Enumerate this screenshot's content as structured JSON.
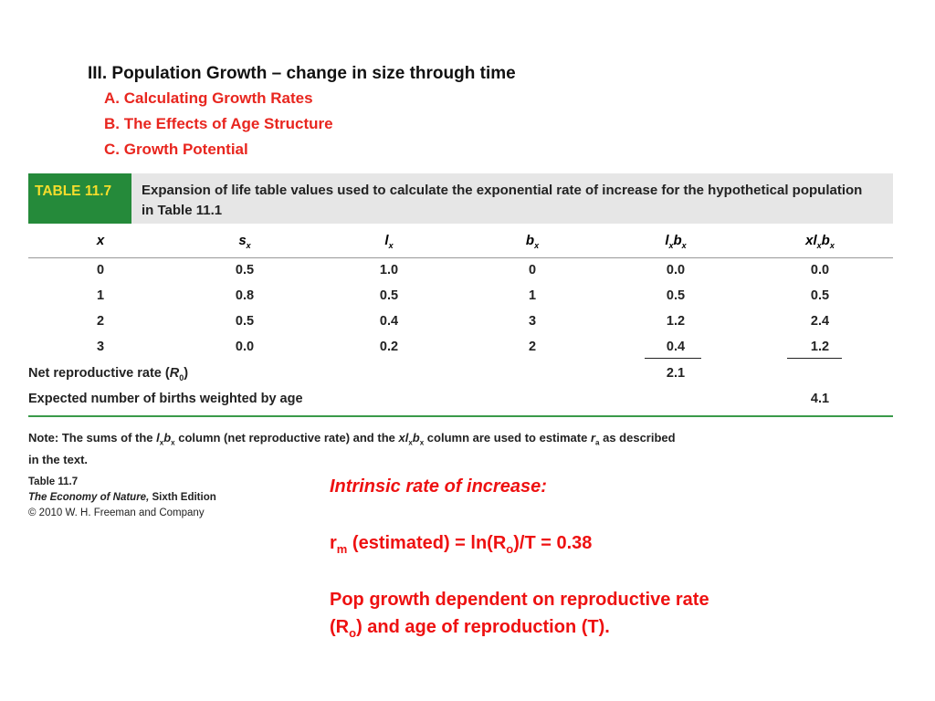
{
  "outline": {
    "heading": "III. Population Growth – change in size through time",
    "items": [
      "A. Calculating Growth Rates",
      "B. The Effects of Age Structure",
      "C. Growth Potential"
    ]
  },
  "table": {
    "tag": "TABLE 11.7",
    "caption": "Expansion of life table values used to calculate the exponential rate of increase for the hypothetical population in Table 11.1",
    "columns": {
      "x": "x",
      "s_base": "s",
      "s_sub": "x",
      "l_base": "l",
      "l_sub": "x",
      "b_base": "b",
      "b_sub": "x",
      "lb_l": "l",
      "lb_sub1": "x",
      "lb_b": "b",
      "lb_sub2": "x",
      "xlb_x": "xl",
      "xlb_sub1": "x",
      "xlb_b": "b",
      "xlb_sub2": "x"
    },
    "rows": [
      [
        "0",
        "0.5",
        "1.0",
        "0",
        "0.0",
        "0.0"
      ],
      [
        "1",
        "0.8",
        "0.5",
        "1",
        "0.5",
        "0.5"
      ],
      [
        "2",
        "0.5",
        "0.4",
        "3",
        "1.2",
        "2.4"
      ],
      [
        "3",
        "0.0",
        "0.2",
        "2",
        "0.4",
        "1.2"
      ]
    ],
    "net_label": "Net reproductive rate (",
    "net_label_R": "R",
    "net_label_sub": "0",
    "net_label_close": ")",
    "net_value": "2.1",
    "expected_label": "Expected number of births weighted by age",
    "expected_value": "4.1"
  },
  "note": {
    "bold_prefix": "Note:",
    "t1": " The sums of the ",
    "l": "l",
    "x1": "x",
    "b": "b",
    "x2": "x",
    "t2": " column (net reproductive rate) and the ",
    "xl": "xl",
    "x3": "x",
    "b2": "b",
    "x4": "x",
    "t3": " column are used to estimate ",
    "r": "r",
    "a": "a",
    "t4": " as described in the text."
  },
  "credit": {
    "line1": "Table 11.7",
    "book": "The Economy of Nature,",
    "edition": " Sixth Edition",
    "line3": "© 2010 W. H. Freeman and Company"
  },
  "callout": {
    "title": "Intrinsic rate of increase:",
    "eq_r": "r",
    "eq_sub": "m",
    "eq_text": " (estimated) = ln(R",
    "eq_sub2": "o",
    "eq_tail": ")/T = 0.38",
    "line1": "Pop growth dependent on reproductive rate",
    "line2_a": "(R",
    "line2_sub": "o",
    "line2_b": ") and age of reproduction (T)."
  }
}
